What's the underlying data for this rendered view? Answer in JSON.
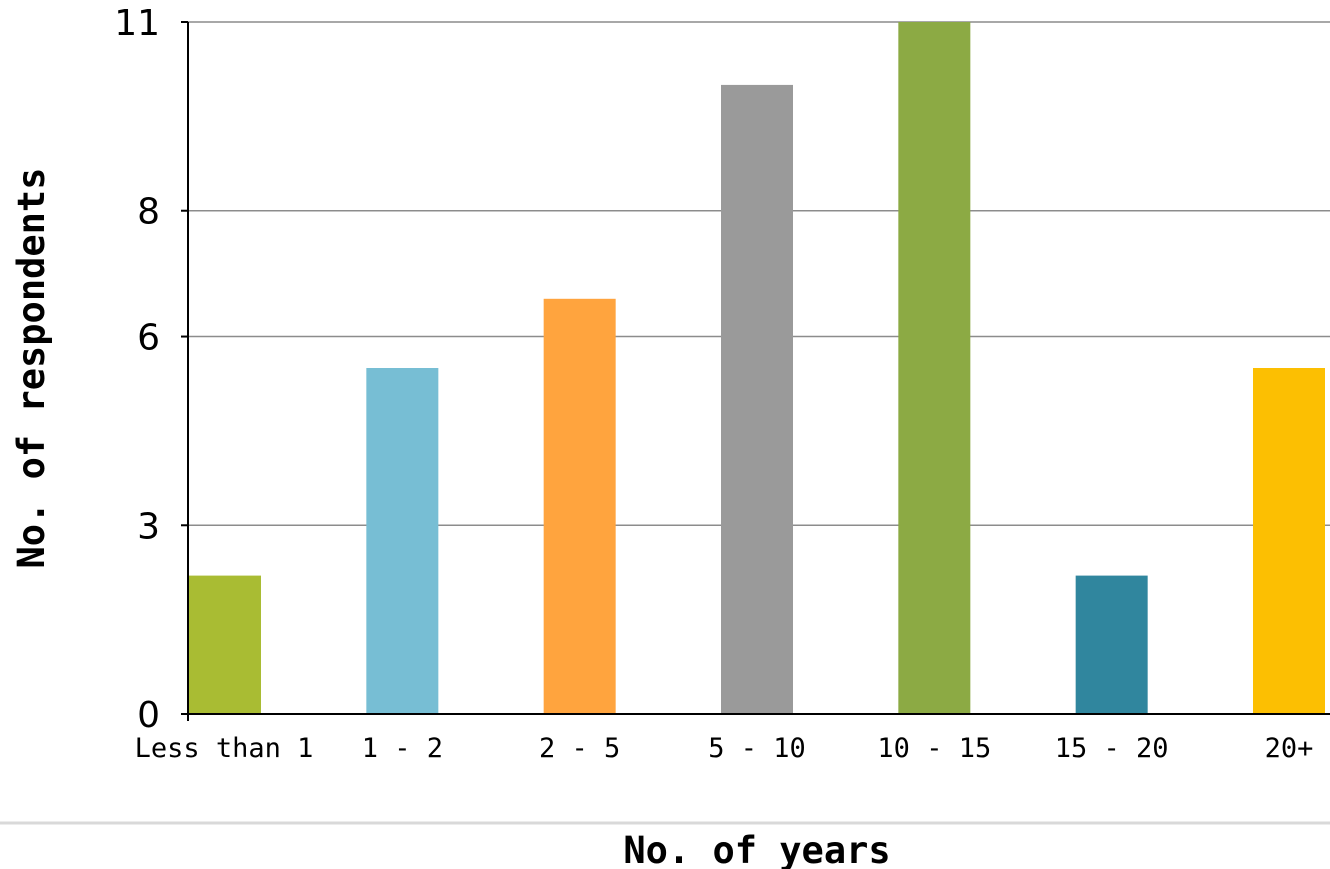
{
  "chart_data": {
    "type": "bar",
    "title": "",
    "xlabel": "No. of years",
    "ylabel": "No. of respondents",
    "categories": [
      "Less than 1",
      "1 - 2",
      "2 - 5",
      "5 - 10",
      "10 - 15",
      "15 - 20",
      "20+"
    ],
    "values": [
      2.2,
      5.5,
      6.6,
      10,
      11,
      2.2,
      5.5
    ],
    "colors": [
      "#A9BC33",
      "#77BED4",
      "#FFA43E",
      "#9A9A9A",
      "#8CAA44",
      "#30869E",
      "#FCBF02"
    ],
    "yticks": [
      0,
      3,
      6,
      8,
      11
    ],
    "ylim": [
      0,
      11
    ],
    "grid": true,
    "legend": "none"
  }
}
